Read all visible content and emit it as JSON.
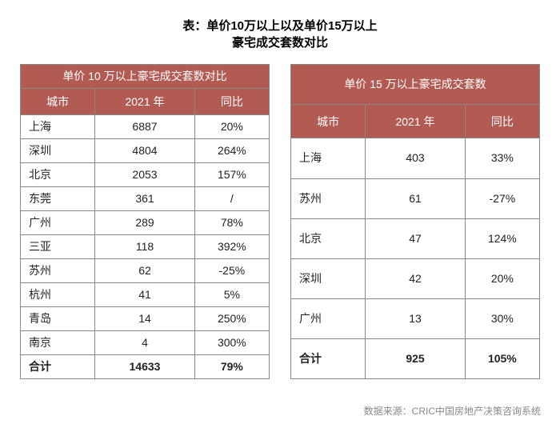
{
  "title": {
    "line1": "表：单价10万以上以及单价15万以上",
    "line2": "豪宅成交套数对比"
  },
  "colors": {
    "header_bg": "#b25b53",
    "header_text": "#ffffff",
    "border": "#888888",
    "body_text": "#222222",
    "source_text": "#888888",
    "page_bg": "#ffffff"
  },
  "left_table": {
    "banner": "单价 10 万以上豪宅成交套数对比",
    "columns": [
      "城市",
      "2021 年",
      "同比"
    ],
    "col_widths_pct": [
      30,
      40,
      30
    ],
    "rows": [
      [
        "上海",
        "6887",
        "20%"
      ],
      [
        "深圳",
        "4804",
        "264%"
      ],
      [
        "北京",
        "2053",
        "157%"
      ],
      [
        "东莞",
        "361",
        "/"
      ],
      [
        "广州",
        "289",
        "78%"
      ],
      [
        "三亚",
        "118",
        "392%"
      ],
      [
        "苏州",
        "62",
        "-25%"
      ],
      [
        "杭州",
        "41",
        "5%"
      ],
      [
        "青岛",
        "14",
        "250%"
      ],
      [
        "南京",
        "4",
        "300%"
      ]
    ],
    "total": [
      "合计",
      "14633",
      "79%"
    ]
  },
  "right_table": {
    "banner": "单价 15 万以上豪宅成交套数",
    "columns": [
      "城市",
      "2021 年",
      "同比"
    ],
    "col_widths_pct": [
      30,
      40,
      30
    ],
    "rows": [
      [
        "上海",
        "403",
        "33%"
      ],
      [
        "苏州",
        "61",
        "-27%"
      ],
      [
        "北京",
        "47",
        "124%"
      ],
      [
        "深圳",
        "42",
        "20%"
      ],
      [
        "广州",
        "13",
        "30%"
      ]
    ],
    "total": [
      "合计",
      "925",
      "105%"
    ]
  },
  "source": "数据来源：CRIC中国房地产决策咨询系统"
}
